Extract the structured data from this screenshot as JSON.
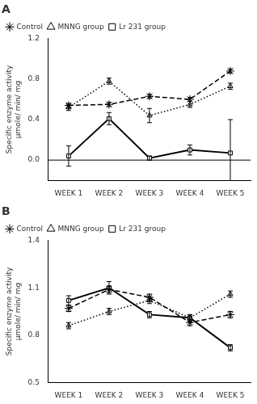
{
  "chart_data": [
    {
      "type": "line",
      "title": "A",
      "categories": [
        "WEEK 1",
        "WEEK 2",
        "WEEK 3",
        "WEEK 4",
        "WEEK 5"
      ],
      "ylabel": "Specific enzyme activity\nμmole/ min/ mg",
      "ylim": [
        -0.2,
        1.2
      ],
      "yticks": [
        {
          "value": 0,
          "label": "0.0"
        },
        0.4,
        0.8,
        1.2
      ],
      "grid": false,
      "legend": "upper left",
      "hlines": [
        0
      ],
      "series": [
        {
          "name": "Control",
          "color": "#000000",
          "values": [
            0.54,
            0.55,
            0.63,
            0.6,
            0.88
          ],
          "errors": [
            0.02,
            0.02,
            0.02,
            0.02,
            0.02
          ],
          "marker": "star",
          "line_style": "dashed"
        },
        {
          "name": "MNNG group",
          "color": "#000000",
          "values": [
            0.52,
            0.78,
            0.44,
            0.55,
            0.73
          ],
          "errors": [
            0.03,
            0.03,
            0.07,
            0.03,
            0.03
          ],
          "marker": "triangle",
          "line_style": "dotted"
        },
        {
          "name": "Lr 231 group",
          "color": "#000000",
          "values": [
            0.04,
            0.41,
            0.02,
            0.1,
            0.07
          ],
          "errors": [
            0.1,
            0.06,
            0.02,
            0.05,
            0.33
          ],
          "marker": "square",
          "line_style": "solid"
        }
      ]
    },
    {
      "type": "line",
      "title": "B",
      "categories": [
        "WEEK 1",
        "WEEK 2",
        "WEEK 3",
        "WEEK 4",
        "WEEK 5"
      ],
      "ylabel": "Specific enzyme activity\nμmole/ min/ mg",
      "ylim": [
        0.5,
        1.4
      ],
      "yticks": [
        0.5,
        0.8,
        1.1,
        1.4
      ],
      "grid": false,
      "legend": "upper left",
      "series": [
        {
          "name": "Control",
          "color": "#000000",
          "values": [
            0.97,
            1.09,
            1.04,
            0.88,
            0.93
          ],
          "errors": [
            0.02,
            0.02,
            0.02,
            0.02,
            0.02
          ],
          "marker": "star",
          "line_style": "dashed"
        },
        {
          "name": "MNNG group",
          "color": "#000000",
          "values": [
            0.86,
            0.95,
            1.02,
            0.91,
            1.06
          ],
          "errors": [
            0.02,
            0.02,
            0.02,
            0.02,
            0.02
          ],
          "marker": "triangle",
          "line_style": "dotted"
        },
        {
          "name": "Lr 231 group",
          "color": "#000000",
          "values": [
            1.02,
            1.1,
            0.93,
            0.91,
            0.72
          ],
          "errors": [
            0.03,
            0.04,
            0.02,
            0.02,
            0.02
          ],
          "marker": "square",
          "line_style": "solid"
        }
      ]
    }
  ]
}
